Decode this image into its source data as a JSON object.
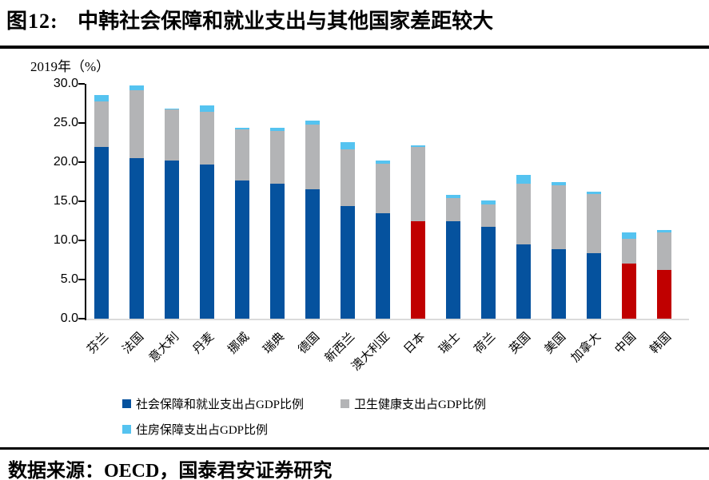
{
  "page": {
    "figure_label": "图12:",
    "title": "中韩社会保障和就业支出与其他国家差距较大",
    "source": "数据来源：OECD，国泰君安证券研究"
  },
  "chart_data": {
    "type": "bar",
    "stacked": true,
    "note": "2019年（%）",
    "ylim": [
      0,
      30
    ],
    "yticks": [
      "30.0",
      "25.0",
      "20.0",
      "15.0",
      "10.0",
      "5.0",
      "0.0"
    ],
    "grid": false,
    "legend_position": "bottom",
    "categories": [
      "芬兰",
      "法国",
      "意大利",
      "丹麦",
      "挪威",
      "瑞典",
      "德国",
      "新西兰",
      "澳大利亚",
      "日本",
      "瑞士",
      "荷兰",
      "英国",
      "美国",
      "加拿大",
      "中国",
      "韩国"
    ],
    "category_ids": [
      "finland",
      "france",
      "italy",
      "denmark",
      "norway",
      "sweden",
      "germany",
      "new-zealand",
      "australia",
      "japan",
      "switzerland",
      "netherlands",
      "uk",
      "usa",
      "canada",
      "china",
      "korea"
    ],
    "series": [
      {
        "name": "社会保障和就业支出占GDP比例",
        "color": "#05529E",
        "values": [
          21.9,
          20.5,
          20.2,
          19.7,
          17.7,
          17.3,
          16.5,
          14.4,
          13.5,
          12.5,
          12.5,
          11.7,
          9.5,
          8.9,
          8.4,
          7.0,
          6.2
        ]
      },
      {
        "name": "卫生健康支出占GDP比例",
        "color": "#B3B4B6",
        "values": [
          5.9,
          8.7,
          6.5,
          6.7,
          6.5,
          6.7,
          8.3,
          7.2,
          6.3,
          9.4,
          2.9,
          2.9,
          7.8,
          8.1,
          7.5,
          3.2,
          4.8
        ]
      },
      {
        "name": "住房保障支出占GDP比例",
        "color": "#55C3F0",
        "values": [
          0.8,
          0.6,
          0.1,
          0.8,
          0.2,
          0.4,
          0.5,
          1.0,
          0.4,
          0.2,
          0.4,
          0.5,
          1.1,
          0.5,
          0.3,
          0.8,
          0.3
        ]
      }
    ],
    "highlighted_categories": [
      "日本",
      "中国",
      "韩国"
    ],
    "colors": {
      "highlight": "#C00000",
      "axis": "#000000",
      "baseline": "#DBDBDB"
    }
  }
}
